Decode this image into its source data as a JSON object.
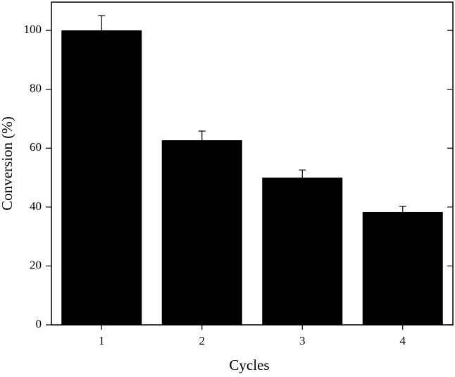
{
  "chart_data": {
    "type": "bar",
    "x_label": "Cycles",
    "y_label": "Conversion (%)",
    "categories": [
      "1",
      "2",
      "3",
      "4"
    ],
    "values": [
      100,
      62.7,
      50,
      38.3
    ],
    "errors": [
      5,
      3.1,
      2.6,
      2
    ],
    "color": "#000000",
    "ylim": [
      0,
      109.6
    ],
    "yticks": [
      0,
      20,
      40,
      60,
      80,
      100
    ]
  }
}
